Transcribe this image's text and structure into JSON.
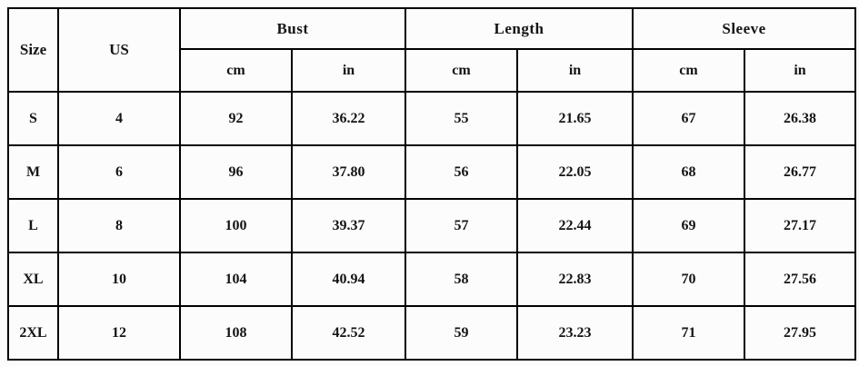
{
  "table": {
    "columns": {
      "size": "Size",
      "us": "US",
      "groups": [
        {
          "label": "Bust"
        },
        {
          "label": "Length"
        },
        {
          "label": "Sleeve"
        }
      ],
      "unit_cm": "cm",
      "unit_in": "in"
    },
    "rows": [
      {
        "size": "S",
        "us": "4",
        "bust_cm": "92",
        "bust_in": "36.22",
        "length_cm": "55",
        "length_in": "21.65",
        "sleeve_cm": "67",
        "sleeve_in": "26.38"
      },
      {
        "size": "M",
        "us": "6",
        "bust_cm": "96",
        "bust_in": "37.80",
        "length_cm": "56",
        "length_in": "22.05",
        "sleeve_cm": "68",
        "sleeve_in": "26.77"
      },
      {
        "size": "L",
        "us": "8",
        "bust_cm": "100",
        "bust_in": "39.37",
        "length_cm": "57",
        "length_in": "22.44",
        "sleeve_cm": "69",
        "sleeve_in": "27.17"
      },
      {
        "size": "XL",
        "us": "10",
        "bust_cm": "104",
        "bust_in": "40.94",
        "length_cm": "58",
        "length_in": "22.83",
        "sleeve_cm": "70",
        "sleeve_in": "27.56"
      },
      {
        "size": "2XL",
        "us": "12",
        "bust_cm": "108",
        "bust_in": "42.52",
        "length_cm": "59",
        "length_in": "23.23",
        "sleeve_cm": "71",
        "sleeve_in": "27.95"
      }
    ],
    "colors": {
      "border": "#000000",
      "background": "#fcfcfc",
      "text": "#141414"
    }
  }
}
